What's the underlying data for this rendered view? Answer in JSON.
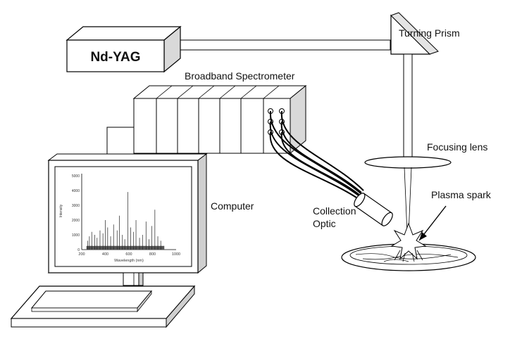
{
  "labels": {
    "laser": "Nd-YAG",
    "turning_prism": "Turning Prism",
    "spectrometer": "Broadband Spectrometer",
    "focusing_lens": "Focusing lens",
    "plasma_spark": "Plasma spark",
    "computer": "Computer",
    "collection_optic_line1": "Collection",
    "collection_optic_line2": "Optic"
  },
  "chart_data": {
    "type": "line",
    "xlabel": "Wavelength (nm)",
    "ylabel": "Intensity",
    "xlim": [
      200,
      1000
    ],
    "ylim": [
      0,
      5000
    ],
    "x_ticks": [
      200,
      400,
      600,
      800,
      1000
    ],
    "y_ticks": [
      0,
      1000,
      2000,
      3000,
      4000,
      5000
    ],
    "peaks": [
      {
        "x": 250,
        "y": 600
      },
      {
        "x": 265,
        "y": 900
      },
      {
        "x": 285,
        "y": 1200
      },
      {
        "x": 310,
        "y": 1000
      },
      {
        "x": 330,
        "y": 800
      },
      {
        "x": 355,
        "y": 1300
      },
      {
        "x": 380,
        "y": 1100
      },
      {
        "x": 400,
        "y": 2000
      },
      {
        "x": 420,
        "y": 1500
      },
      {
        "x": 445,
        "y": 900
      },
      {
        "x": 470,
        "y": 1700
      },
      {
        "x": 500,
        "y": 1300
      },
      {
        "x": 520,
        "y": 2300
      },
      {
        "x": 545,
        "y": 1000
      },
      {
        "x": 565,
        "y": 700
      },
      {
        "x": 590,
        "y": 3900
      },
      {
        "x": 615,
        "y": 1500
      },
      {
        "x": 640,
        "y": 1200
      },
      {
        "x": 660,
        "y": 2000
      },
      {
        "x": 690,
        "y": 800
      },
      {
        "x": 715,
        "y": 1000
      },
      {
        "x": 745,
        "y": 1900
      },
      {
        "x": 770,
        "y": 700
      },
      {
        "x": 795,
        "y": 1600
      },
      {
        "x": 820,
        "y": 2700
      },
      {
        "x": 845,
        "y": 900
      },
      {
        "x": 870,
        "y": 600
      }
    ]
  }
}
